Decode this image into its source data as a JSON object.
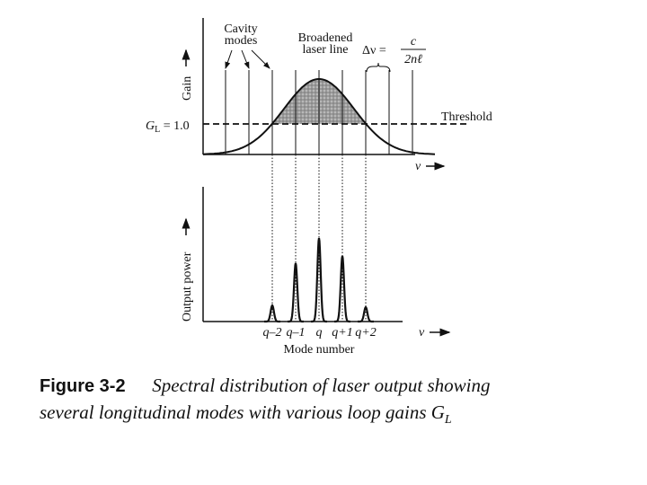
{
  "top_panel": {
    "cavity_label": [
      "Cavity",
      "modes"
    ],
    "line_label": [
      "Broadened",
      "laser line"
    ],
    "spacing": {
      "lhs": "Δν =",
      "numerator": "c",
      "denominator": "2nℓ"
    },
    "y_axis_label": "Gain",
    "threshold_level": {
      "symbol": "G",
      "subscript": "L",
      "text": " = 1.0"
    },
    "threshold_label": "Threshold",
    "x_axis_label": "ν"
  },
  "bottom_panel": {
    "y_axis_label": "Output power",
    "mode_labels": [
      "q–2",
      "q–1",
      "q",
      "q+1",
      "q+2"
    ],
    "x_axis_label": "ν",
    "x_title": "Mode number"
  },
  "caption": {
    "number": "Figure 3-2",
    "text": "Spectral distribution of laser output showing several longitudinal modes with various loop gains ",
    "symbol": "G",
    "subscript": "L"
  }
}
